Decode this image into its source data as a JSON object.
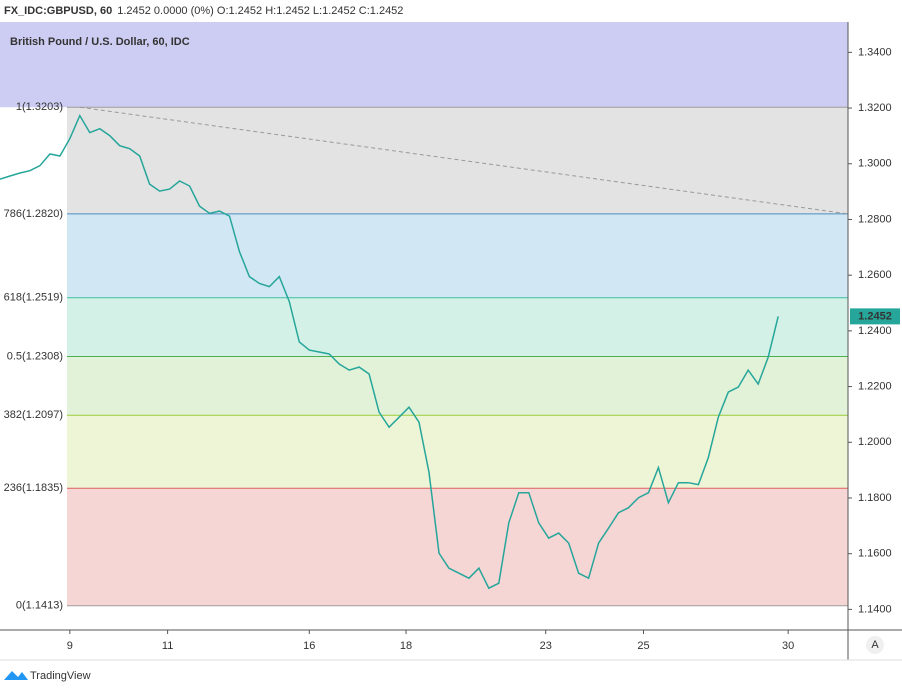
{
  "chart_data": {
    "type": "line",
    "title": "FX_IDC:GBPUSD, 60",
    "quote": "1.2452 0.0000 (0%) O:1.2452 H:1.2452 L:1.2452 C:1.2452",
    "subtitle": "British Pound / U.S. Dollar, 60, IDC",
    "brand": "TradingView",
    "auto_button": "A",
    "series": [
      {
        "name": "GBPUSD",
        "color": "#26a69a",
        "values": [
          1.2945,
          1.2956,
          1.2967,
          1.2975,
          1.2993,
          1.3035,
          1.3028,
          1.309,
          1.3173,
          1.3112,
          1.3126,
          1.3101,
          1.3065,
          1.3054,
          1.3028,
          1.2927,
          1.2902,
          1.2909,
          1.2938,
          1.292,
          1.2848,
          1.2822,
          1.283,
          1.2812,
          1.2685,
          1.2595,
          1.257,
          1.2559,
          1.2595,
          1.2505,
          1.236,
          1.2331,
          1.2324,
          1.2317,
          1.2281,
          1.2259,
          1.227,
          1.2245,
          1.2108,
          1.2054,
          1.209,
          1.2126,
          1.2072,
          1.1892,
          1.1602,
          1.1548,
          1.153,
          1.1512,
          1.1548,
          1.1476,
          1.1494,
          1.1711,
          1.1819,
          1.1819,
          1.1711,
          1.1656,
          1.1674,
          1.1638,
          1.153,
          1.1512,
          1.1638,
          1.1692,
          1.1747,
          1.1765,
          1.1801,
          1.1819,
          1.1909,
          1.1783,
          1.1855,
          1.1855,
          1.1848,
          1.1945,
          1.209,
          1.218,
          1.2198,
          1.2259,
          1.2209,
          1.2306,
          1.2452
        ]
      }
    ],
    "fib_levels": [
      {
        "label": "1(1.3203)",
        "value": 1.3203,
        "color": "#9e9e9e",
        "fill": "#e3e3e3"
      },
      {
        "label": "786(1.2820)",
        "value": 1.282,
        "color": "#4a90c2",
        "fill": "#d2e7f4"
      },
      {
        "label": "618(1.2519)",
        "value": 1.2519,
        "color": "#3dbfa0",
        "fill": "#d3f1e6"
      },
      {
        "label": "0.5(1.2308)",
        "value": 1.2308,
        "color": "#4caf50",
        "fill": "#e1f2d8"
      },
      {
        "label": "382(1.2097)",
        "value": 1.2097,
        "color": "#9ccc3c",
        "fill": "#eef4d6"
      },
      {
        "label": "236(1.1835)",
        "value": 1.1835,
        "color": "#e06060",
        "fill": "#f6d5d5"
      },
      {
        "label": "0(1.1413)",
        "value": 1.1413,
        "color": "#9e9e9e",
        "fill": "#ffffff"
      }
    ],
    "top_band_color": "#cdcdf3",
    "xlim": [
      0,
      85
    ],
    "xticks": [
      {
        "value": 7,
        "label": "9"
      },
      {
        "value": 16.8,
        "label": "11"
      },
      {
        "value": 31,
        "label": "16"
      },
      {
        "value": 40.7,
        "label": "18"
      },
      {
        "value": 54.7,
        "label": "23"
      },
      {
        "value": 64.5,
        "label": "25"
      },
      {
        "value": 79,
        "label": "30"
      }
    ],
    "ylim": [
      1.1326,
      1.3509
    ],
    "yticks": [
      {
        "value": 1.34,
        "label": "1.3400"
      },
      {
        "value": 1.32,
        "label": "1.3200"
      },
      {
        "value": 1.3,
        "label": "1.3000"
      },
      {
        "value": 1.28,
        "label": "1.2800"
      },
      {
        "value": 1.26,
        "label": "1.2600"
      },
      {
        "value": 1.24,
        "label": "1.2400"
      },
      {
        "value": 1.22,
        "label": "1.2200"
      },
      {
        "value": 1.2,
        "label": "1.2000"
      },
      {
        "value": 1.18,
        "label": "1.1800"
      },
      {
        "value": 1.16,
        "label": "1.1600"
      },
      {
        "value": 1.14,
        "label": "1.1400"
      }
    ]
  }
}
